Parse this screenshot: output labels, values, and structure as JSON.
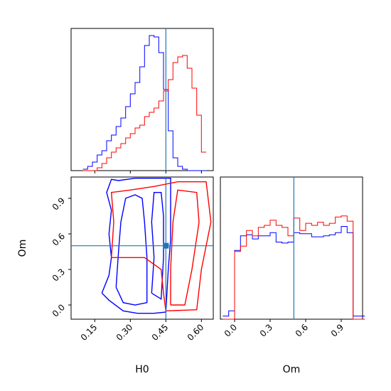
{
  "chart_data": {
    "type": "corner",
    "parameters": [
      "H0",
      "Om"
    ],
    "xlabel_h0": "H0",
    "xlabel_om": "Om",
    "ylabel_om": "Om",
    "h0_ticks": [
      "0.15",
      "0.30",
      "0.45",
      "0.60"
    ],
    "om_ticks": [
      "0.0",
      "0.3",
      "0.6",
      "0.9"
    ],
    "h0_range": [
      0.05,
      0.65
    ],
    "om_range": [
      -0.12,
      1.08
    ],
    "truth": {
      "H0": 0.45,
      "Om": 0.5
    },
    "colors": {
      "series_a": "#0000ff",
      "series_b": "#ff0000",
      "truth": "#1f77b4"
    },
    "hist_h0": {
      "edges": [
        0.1,
        0.12,
        0.14,
        0.16,
        0.18,
        0.2,
        0.22,
        0.24,
        0.26,
        0.28,
        0.3,
        0.32,
        0.34,
        0.36,
        0.38,
        0.4,
        0.42,
        0.44,
        0.46,
        0.48,
        0.5,
        0.52,
        0.54,
        0.56,
        0.58,
        0.6,
        0.62
      ],
      "series": [
        {
          "color": "blue",
          "values": [
            0.01,
            0.03,
            0.06,
            0.11,
            0.14,
            0.21,
            0.25,
            0.31,
            0.37,
            0.45,
            0.54,
            0.62,
            0.73,
            0.88,
            0.95,
            0.94,
            0.83,
            0.57,
            0.28,
            0.09,
            0.03,
            0.01,
            0,
            0,
            0,
            0
          ]
        },
        {
          "color": "red",
          "values": [
            0,
            0,
            0,
            0.02,
            0.05,
            0.09,
            0.13,
            0.16,
            0.19,
            0.23,
            0.26,
            0.3,
            0.32,
            0.38,
            0.41,
            0.44,
            0.49,
            0.56,
            0.64,
            0.76,
            0.8,
            0.81,
            0.72,
            0.58,
            0.39,
            0.13
          ]
        }
      ]
    },
    "hist_om": {
      "edges": [
        -0.1,
        -0.05,
        0.0,
        0.05,
        0.1,
        0.15,
        0.2,
        0.25,
        0.3,
        0.35,
        0.4,
        0.45,
        0.5,
        0.55,
        0.6,
        0.65,
        0.7,
        0.75,
        0.8,
        0.85,
        0.9,
        0.95,
        1.0,
        1.05,
        1.1
      ],
      "series": [
        {
          "color": "blue",
          "values": [
            0.03,
            0.08,
            0.66,
            0.8,
            0.81,
            0.77,
            0.8,
            0.8,
            0.83,
            0.74,
            0.73,
            0.74,
            0.83,
            0.82,
            0.82,
            0.79,
            0.79,
            0.8,
            0.81,
            0.83,
            0.89,
            0.83,
            0.03,
            0.03
          ]
        },
        {
          "color": "red",
          "values": [
            0,
            0,
            0.65,
            0.7,
            0.85,
            0.8,
            0.88,
            0.9,
            0.95,
            0.9,
            0.88,
            0.8,
            0.97,
            0.85,
            0.92,
            0.9,
            0.93,
            0.9,
            0.92,
            0.98,
            0.99,
            0.94,
            0,
            0
          ]
        }
      ]
    },
    "contours": [
      {
        "color": "blue",
        "level": "outer",
        "points": [
          [
            0.18,
            0.1
          ],
          [
            0.21,
            0.04
          ],
          [
            0.27,
            -0.05
          ],
          [
            0.33,
            -0.07
          ],
          [
            0.4,
            -0.07
          ],
          [
            0.45,
            -0.06
          ],
          [
            0.46,
            0.3
          ],
          [
            0.47,
            0.55
          ],
          [
            0.47,
            0.8
          ],
          [
            0.47,
            1.07
          ],
          [
            0.4,
            1.07
          ],
          [
            0.32,
            1.07
          ],
          [
            0.25,
            1.05
          ],
          [
            0.22,
            1.06
          ],
          [
            0.2,
            0.95
          ],
          [
            0.22,
            0.8
          ],
          [
            0.21,
            0.6
          ],
          [
            0.22,
            0.4
          ],
          [
            0.21,
            0.25
          ],
          [
            0.18,
            0.1
          ]
        ]
      },
      {
        "color": "blue",
        "level": "inner",
        "points": [
          [
            0.24,
            0.15
          ],
          [
            0.27,
            0.02
          ],
          [
            0.32,
            0.0
          ],
          [
            0.37,
            0.02
          ],
          [
            0.37,
            0.4
          ],
          [
            0.36,
            0.7
          ],
          [
            0.35,
            0.9
          ],
          [
            0.32,
            0.93
          ],
          [
            0.28,
            0.9
          ],
          [
            0.26,
            0.7
          ],
          [
            0.25,
            0.45
          ],
          [
            0.24,
            0.15
          ]
        ]
      },
      {
        "color": "blue",
        "level": "inner2",
        "points": [
          [
            0.39,
            0.1
          ],
          [
            0.43,
            0.05
          ],
          [
            0.44,
            0.4
          ],
          [
            0.44,
            0.75
          ],
          [
            0.43,
            0.95
          ],
          [
            0.4,
            0.95
          ],
          [
            0.39,
            0.7
          ],
          [
            0.4,
            0.4
          ],
          [
            0.39,
            0.1
          ]
        ]
      },
      {
        "color": "red",
        "level": "outer",
        "points": [
          [
            0.22,
            0.4
          ],
          [
            0.23,
            0.7
          ],
          [
            0.22,
            0.95
          ],
          [
            0.3,
            0.97
          ],
          [
            0.4,
            1.0
          ],
          [
            0.5,
            1.04
          ],
          [
            0.62,
            1.04
          ],
          [
            0.64,
            0.7
          ],
          [
            0.6,
            0.3
          ],
          [
            0.58,
            -0.04
          ],
          [
            0.45,
            -0.05
          ],
          [
            0.44,
            0.1
          ],
          [
            0.43,
            0.3
          ],
          [
            0.36,
            0.4
          ],
          [
            0.28,
            0.4
          ],
          [
            0.22,
            0.4
          ]
        ]
      },
      {
        "color": "red",
        "level": "inner",
        "points": [
          [
            0.47,
            0.0
          ],
          [
            0.53,
            0.0
          ],
          [
            0.56,
            0.3
          ],
          [
            0.59,
            0.7
          ],
          [
            0.58,
            0.95
          ],
          [
            0.5,
            0.97
          ],
          [
            0.48,
            0.7
          ],
          [
            0.47,
            0.3
          ],
          [
            0.47,
            0.0
          ]
        ]
      }
    ]
  }
}
